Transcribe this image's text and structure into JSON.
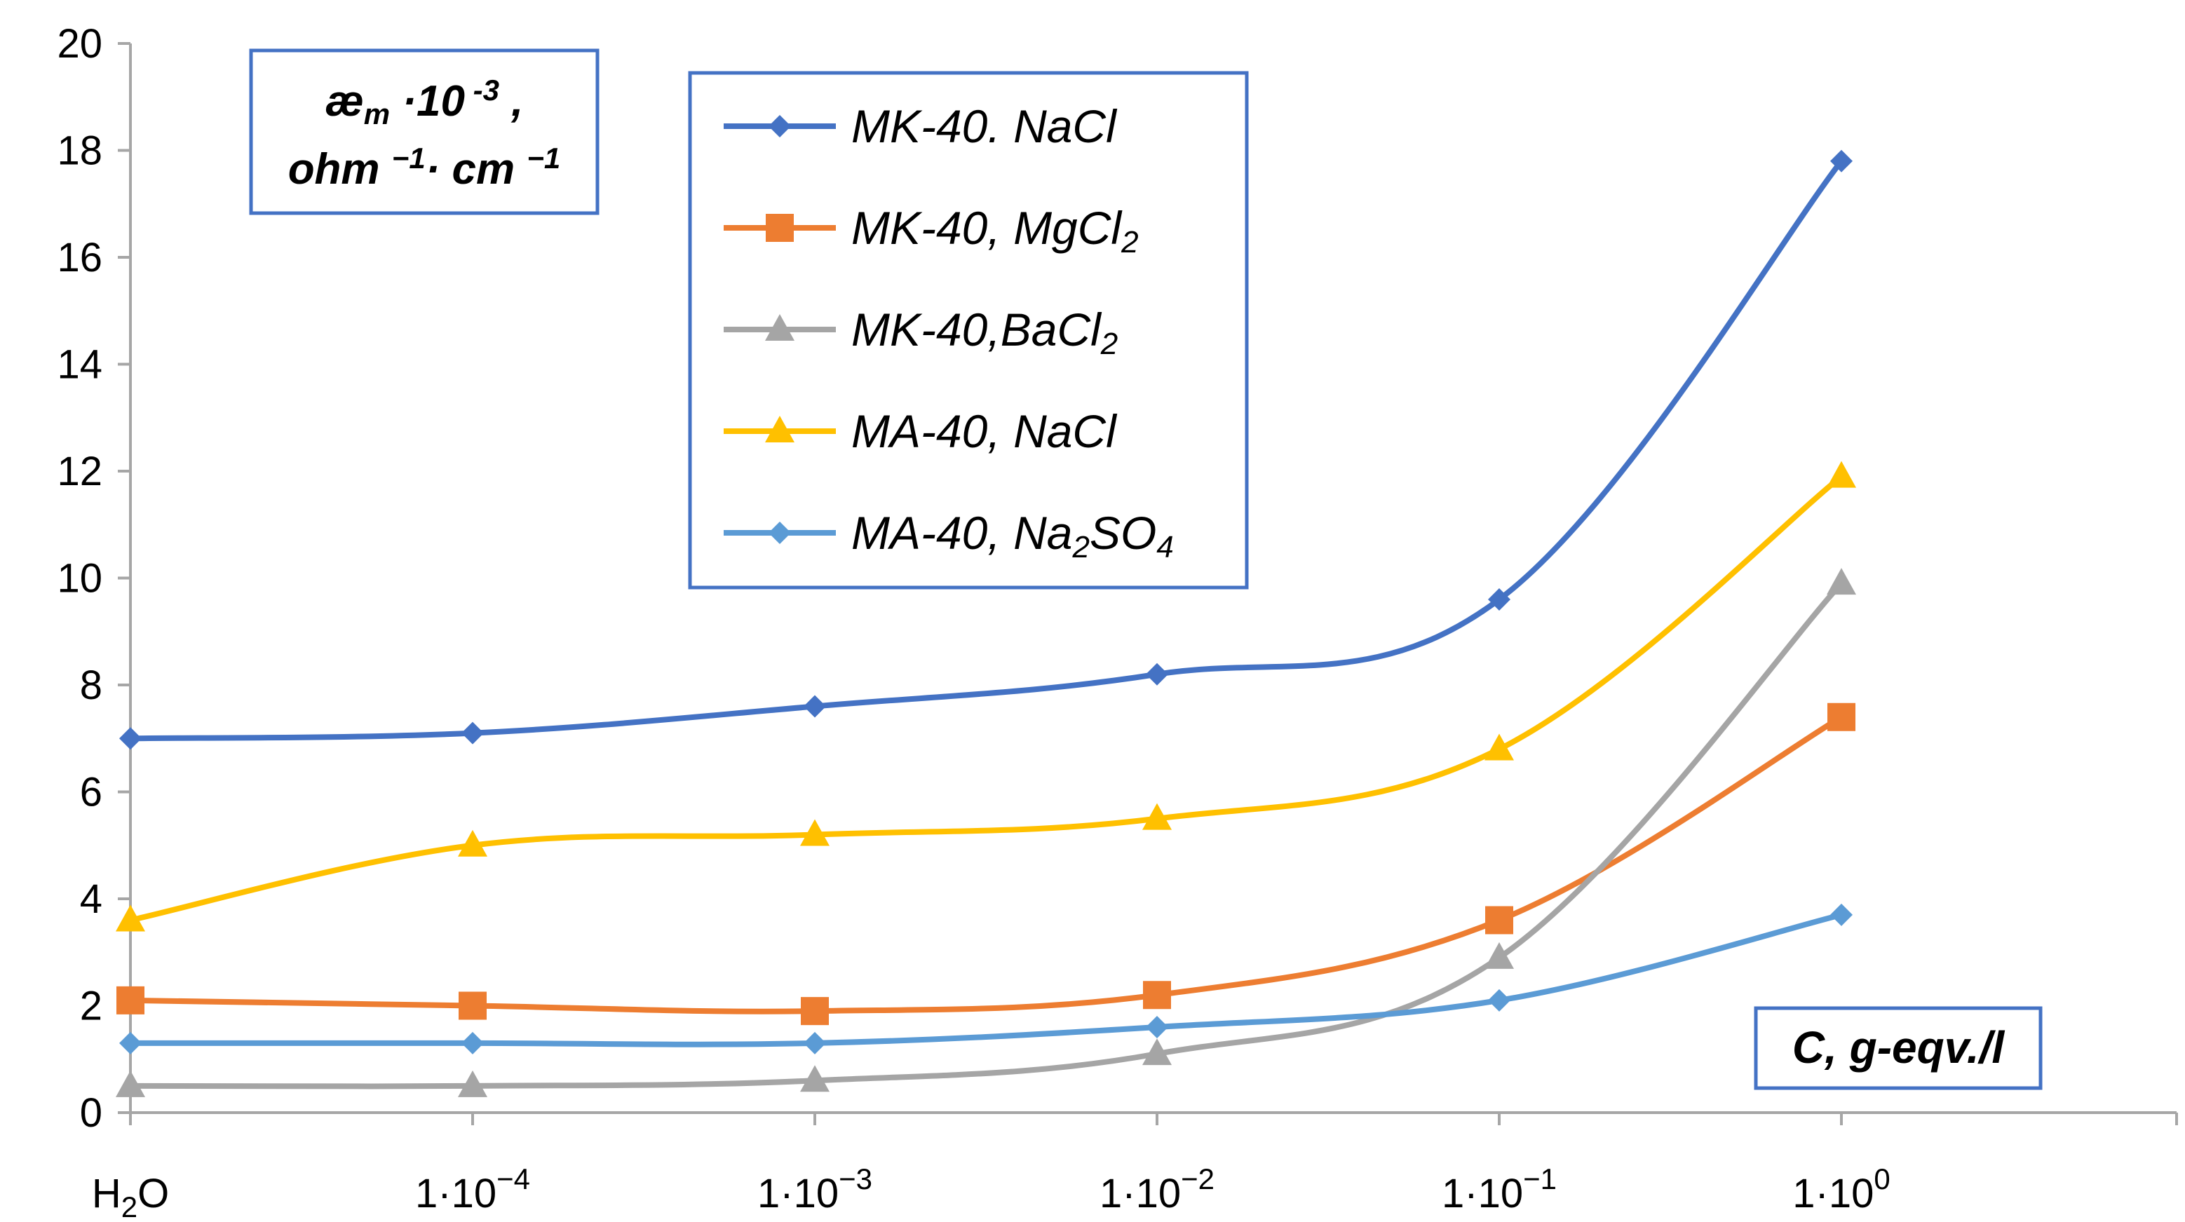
{
  "chart_data": {
    "type": "line",
    "title": "",
    "ylabel_lines": [
      "æ",
      "m",
      " ·10",
      " -3",
      " ,",
      "ohm ",
      "−1",
      "· cm ",
      "−1"
    ],
    "xlabel": "C, g-eqv./l",
    "categories": [
      {
        "base": "H",
        "sub": "2",
        "rest": "O"
      },
      {
        "base": "1·10",
        "sup": "−4"
      },
      {
        "base": "1·10",
        "sup": "−3"
      },
      {
        "base": "1·10",
        "sup": "−2"
      },
      {
        "base": "1·10",
        "sup": "−1"
      },
      {
        "base": "1·10",
        "sup": "0"
      }
    ],
    "ylim": [
      0,
      20
    ],
    "yticks": [
      "0",
      "2",
      "4",
      "6",
      "8",
      "10",
      "12",
      "14",
      "16",
      "18",
      "20"
    ],
    "grid": false,
    "legend_position": "top-center",
    "series": [
      {
        "name": "MK-40. NaCl",
        "name_main": "MK-40. NaCl",
        "name_sub": "",
        "name_tail": "",
        "color": "#4472C4",
        "marker": "diamond",
        "values": [
          7.0,
          7.1,
          7.6,
          8.2,
          9.6,
          17.8
        ]
      },
      {
        "name": "MK-40, MgCl₂",
        "name_main": "MK-40, MgCl",
        "name_sub": "2",
        "name_tail": "",
        "color": "#ED7D31",
        "marker": "square",
        "values": [
          2.1,
          2.0,
          1.9,
          2.2,
          3.6,
          7.4
        ]
      },
      {
        "name": "MK-40,BaCl₂",
        "name_main": "MK-40,BaCl",
        "name_sub": "2",
        "name_tail": "",
        "color": "#A5A5A5",
        "marker": "triangle",
        "values": [
          0.5,
          0.5,
          0.6,
          1.1,
          2.9,
          9.9
        ]
      },
      {
        "name": "MA-40, NaCl",
        "name_main": "MA-40, NaCl",
        "name_sub": "",
        "name_tail": "",
        "color": "#FFC000",
        "marker": "triangle",
        "values": [
          3.6,
          5.0,
          5.2,
          5.5,
          6.8,
          11.9
        ]
      },
      {
        "name": "MA-40, Na₂SO₄",
        "name_main": "MA-40, Na",
        "name_sub": "2",
        "name_tail": "SO",
        "name_sub2": "4",
        "color": "#5B9BD5",
        "marker": "diamond",
        "values": [
          1.3,
          1.3,
          1.3,
          1.6,
          2.1,
          3.7
        ]
      }
    ],
    "box_border_color": "#4472C4",
    "axis_color": "#A6A6A6"
  }
}
